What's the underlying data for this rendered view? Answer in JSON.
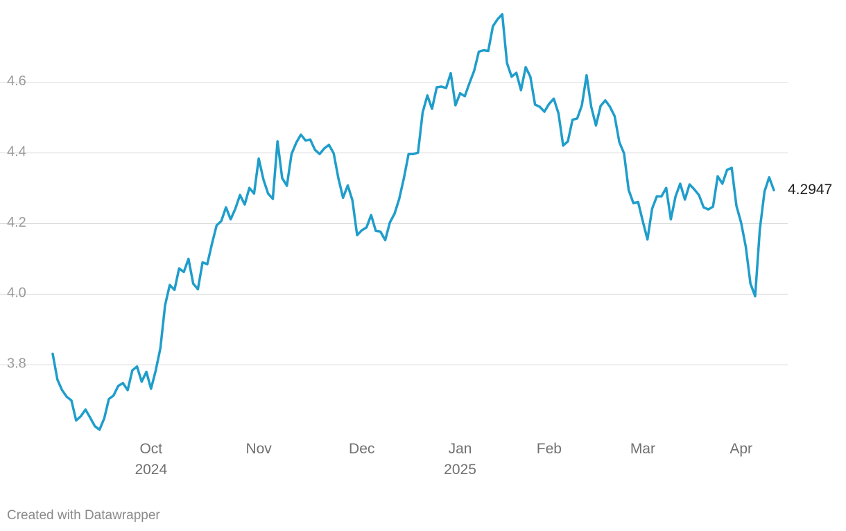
{
  "chart_data": {
    "type": "line",
    "categories": [
      null,
      null,
      null,
      null,
      null,
      null,
      null,
      null,
      null,
      null,
      null,
      null,
      null,
      null,
      null,
      null,
      null,
      null,
      null,
      null,
      null,
      "Oct 2024",
      null,
      null,
      null,
      null,
      null,
      null,
      null,
      null,
      null,
      null,
      null,
      null,
      null,
      null,
      null,
      null,
      null,
      null,
      null,
      null,
      null,
      null,
      "Nov",
      null,
      null,
      null,
      null,
      null,
      null,
      null,
      null,
      null,
      null,
      null,
      null,
      null,
      null,
      null,
      null,
      null,
      null,
      null,
      null,
      null,
      "Dec",
      null,
      null,
      null,
      null,
      null,
      null,
      null,
      null,
      null,
      null,
      null,
      null,
      null,
      null,
      null,
      null,
      null,
      null,
      null,
      null,
      "Jan 2025",
      null,
      null,
      null,
      null,
      null,
      null,
      null,
      null,
      null,
      null,
      null,
      null,
      null,
      null,
      null,
      null,
      null,
      null,
      "Feb",
      null,
      null,
      null,
      null,
      null,
      null,
      null,
      null,
      null,
      null,
      null,
      null,
      null,
      null,
      null,
      null,
      null,
      null,
      null,
      "Mar",
      null,
      null,
      null,
      null,
      null,
      null,
      null,
      null,
      null,
      null,
      null,
      null,
      null,
      null,
      null,
      null,
      null,
      null,
      null,
      null,
      "Apr",
      null,
      null,
      null,
      null,
      null,
      null,
      null
    ],
    "series": [
      {
        "color": "#1f9dcb",
        "values": [
          3.831,
          3.758,
          3.728,
          3.709,
          3.699,
          3.642,
          3.654,
          3.673,
          3.65,
          3.626,
          3.616,
          3.648,
          3.703,
          3.713,
          3.74,
          3.748,
          3.728,
          3.784,
          3.795,
          3.752,
          3.78,
          3.732,
          3.784,
          3.847,
          3.969,
          4.026,
          4.012,
          4.073,
          4.063,
          4.1,
          4.03,
          4.014,
          4.09,
          4.085,
          4.142,
          4.195,
          4.207,
          4.246,
          4.212,
          4.242,
          4.281,
          4.254,
          4.301,
          4.285,
          4.384,
          4.325,
          4.285,
          4.27,
          4.433,
          4.329,
          4.307,
          4.397,
          4.429,
          4.452,
          4.435,
          4.438,
          4.409,
          4.397,
          4.413,
          4.423,
          4.399,
          4.329,
          4.273,
          4.308,
          4.266,
          4.167,
          4.181,
          4.189,
          4.224,
          4.179,
          4.177,
          4.153,
          4.203,
          4.228,
          4.27,
          4.329,
          4.397,
          4.397,
          4.401,
          4.515,
          4.563,
          4.525,
          4.586,
          4.588,
          4.584,
          4.626,
          4.535,
          4.569,
          4.561,
          4.598,
          4.633,
          4.687,
          4.691,
          4.689,
          4.759,
          4.779,
          4.793,
          4.655,
          4.616,
          4.627,
          4.578,
          4.643,
          4.616,
          4.537,
          4.531,
          4.517,
          4.539,
          4.554,
          4.512,
          4.421,
          4.433,
          4.494,
          4.498,
          4.535,
          4.62,
          4.531,
          4.478,
          4.533,
          4.549,
          4.531,
          4.504,
          4.431,
          4.399,
          4.295,
          4.258,
          4.261,
          4.207,
          4.155,
          4.242,
          4.277,
          4.277,
          4.301,
          4.212,
          4.277,
          4.313,
          4.268,
          4.311,
          4.297,
          4.281,
          4.246,
          4.24,
          4.248,
          4.334,
          4.313,
          4.352,
          4.358,
          4.25,
          4.203,
          4.134,
          4.03,
          3.994,
          4.183,
          4.291,
          4.331,
          4.2947
        ]
      }
    ],
    "ylim": [
      3.6,
      4.8
    ],
    "yticks": [
      3.8,
      {
        "value": 4.0,
        "label": "4.0"
      },
      4.2,
      4.4,
      4.6
    ],
    "grid": true
  },
  "credit": "Created with Datawrapper"
}
